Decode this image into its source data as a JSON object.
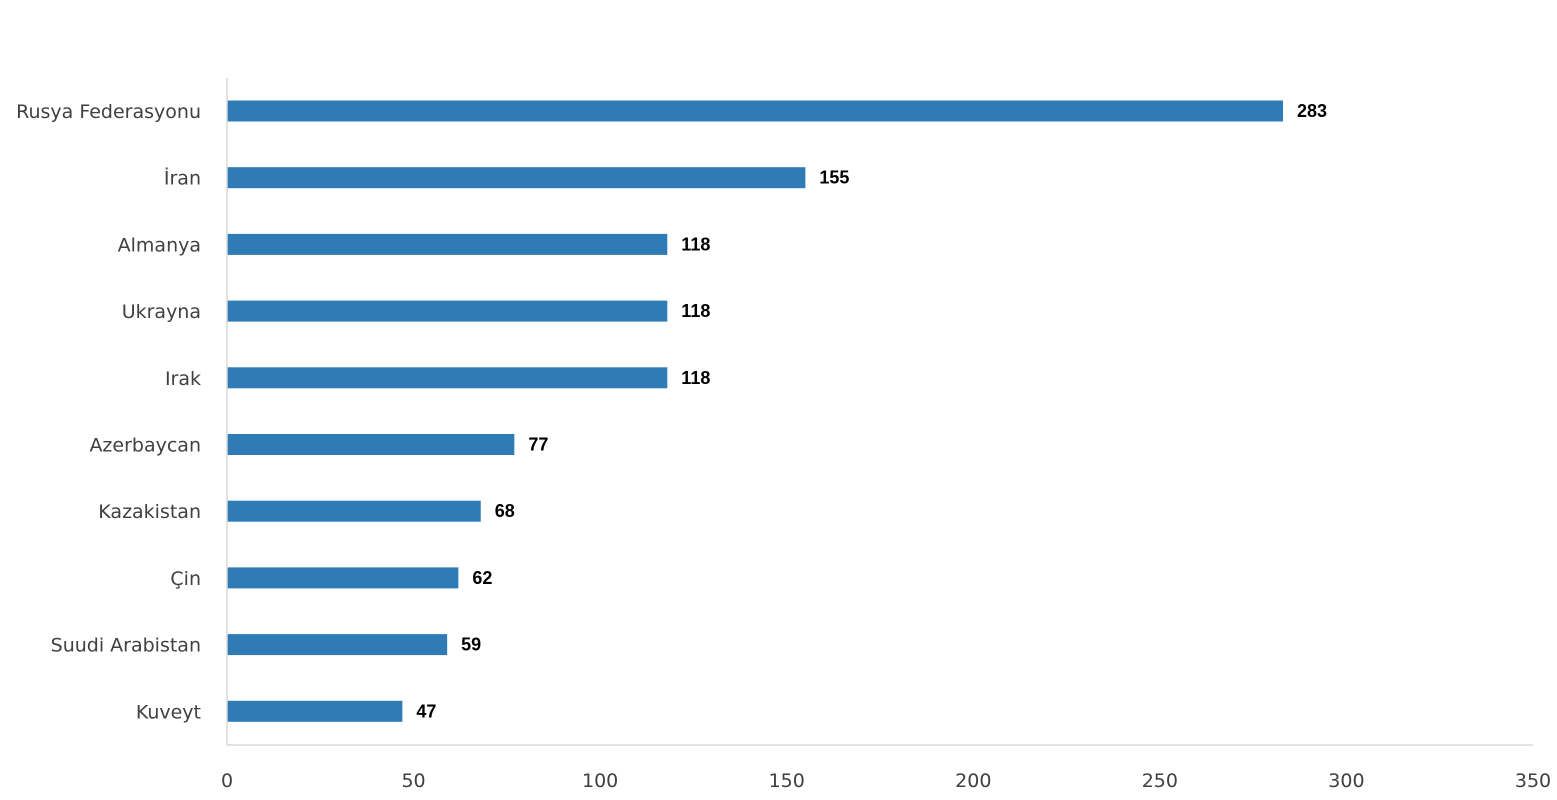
{
  "chart_data": {
    "type": "bar",
    "orientation": "horizontal",
    "categories": [
      "Rusya Federasyonu",
      "İran",
      "Almanya",
      "Ukrayna",
      "Irak",
      "Azerbaycan",
      "Kazakistan",
      "Çin",
      "Suudi Arabistan",
      "Kuveyt"
    ],
    "values": [
      283,
      155,
      118,
      118,
      118,
      77,
      68,
      62,
      59,
      47
    ],
    "title": "",
    "xlabel": "",
    "ylabel": "",
    "xlim": [
      0,
      350
    ],
    "x_ticks": [
      0,
      50,
      100,
      150,
      200,
      250,
      300,
      350
    ],
    "grid": false,
    "legend": "none",
    "data_labels": true,
    "bar_color": "#2e7bb6",
    "axis_color": "#d9d9d9"
  }
}
